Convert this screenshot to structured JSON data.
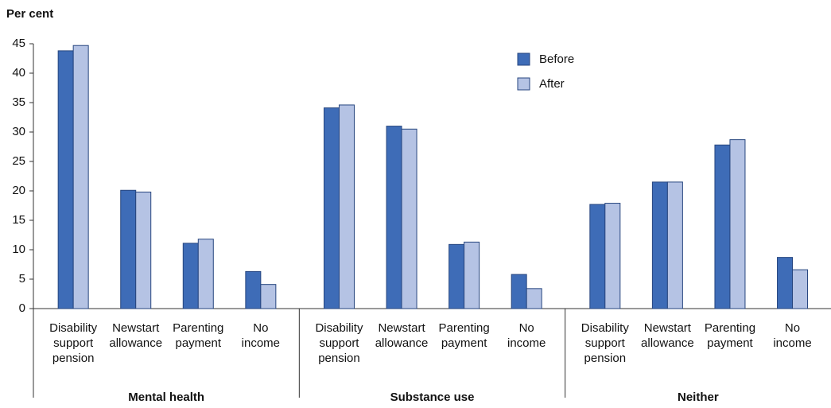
{
  "chart_data": {
    "type": "bar",
    "ylabel": "Per cent",
    "ylim": [
      0,
      45
    ],
    "yticks": [
      0,
      5,
      10,
      15,
      20,
      25,
      30,
      35,
      40,
      45
    ],
    "legend": "top",
    "groups": [
      {
        "name": "Mental health",
        "categories": [
          "Disability support pension",
          "Newstart allowance",
          "Parenting payment",
          "No income"
        ]
      },
      {
        "name": "Substance use",
        "categories": [
          "Disability support pension",
          "Newstart allowance",
          "Parenting payment",
          "No income"
        ]
      },
      {
        "name": "Neither",
        "categories": [
          "Disability support pension",
          "Newstart allowance",
          "Parenting payment",
          "No income"
        ]
      }
    ],
    "series": [
      {
        "name": "Before",
        "color": "#3e6cb7",
        "values": [
          43.8,
          20.1,
          11.1,
          6.3,
          34.1,
          31.0,
          10.9,
          5.8,
          17.7,
          21.5,
          27.8,
          8.7
        ]
      },
      {
        "name": "After",
        "color": "#b5c3e4",
        "values": [
          44.7,
          19.8,
          11.8,
          4.1,
          34.6,
          30.5,
          11.3,
          3.4,
          17.9,
          21.5,
          28.7,
          6.6
        ]
      }
    ]
  }
}
